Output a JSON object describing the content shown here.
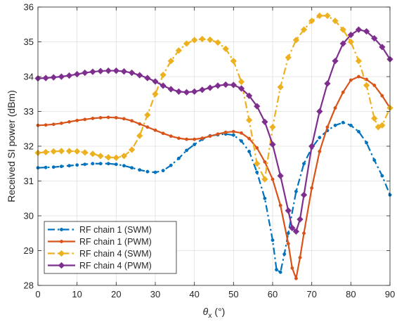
{
  "chart_data": {
    "type": "line",
    "xlabel_symbol": "θ",
    "xlabel_subscript": "x",
    "xlabel_unit": " (°)",
    "ylabel": "Received SI power (dBm)",
    "xlim": [
      0,
      90
    ],
    "ylim": [
      28,
      36
    ],
    "xticks": [
      0,
      10,
      20,
      30,
      40,
      50,
      60,
      70,
      80,
      90
    ],
    "yticks": [
      28,
      29,
      30,
      31,
      32,
      33,
      34,
      35,
      36
    ],
    "grid": true,
    "legend_position": "bottom-left",
    "series": [
      {
        "name": "RF chain 1 (SWM)",
        "color": "#0072BD",
        "line_style": "dashdot",
        "marker": "dot",
        "x": [
          0,
          2,
          4,
          6,
          8,
          10,
          12,
          14,
          16,
          18,
          20,
          22,
          24,
          26,
          28,
          30,
          32,
          34,
          36,
          38,
          40,
          42,
          44,
          46,
          48,
          50,
          52,
          54,
          56,
          58,
          60,
          61,
          62,
          63,
          64,
          66,
          68,
          70,
          72,
          74,
          76,
          78,
          80,
          82,
          84,
          86,
          88,
          90
        ],
        "y": [
          31.38,
          31.39,
          31.4,
          31.42,
          31.44,
          31.46,
          31.48,
          31.5,
          31.5,
          31.5,
          31.48,
          31.44,
          31.38,
          31.32,
          31.27,
          31.25,
          31.3,
          31.45,
          31.65,
          31.88,
          32.05,
          32.2,
          32.3,
          32.33,
          32.35,
          32.32,
          32.15,
          31.85,
          31.25,
          30.5,
          29.3,
          28.45,
          28.38,
          28.9,
          29.5,
          30.7,
          31.5,
          31.95,
          32.25,
          32.45,
          32.6,
          32.68,
          32.6,
          32.42,
          32.1,
          31.6,
          31.15,
          30.6
        ]
      },
      {
        "name": "RF chain 1 (PWM)",
        "color": "#D95319",
        "line_style": "solid",
        "marker": "dot",
        "x": [
          0,
          2,
          4,
          6,
          8,
          10,
          12,
          14,
          16,
          18,
          20,
          22,
          24,
          26,
          28,
          30,
          32,
          34,
          36,
          38,
          40,
          42,
          44,
          46,
          48,
          50,
          52,
          54,
          56,
          58,
          60,
          62,
          64,
          65,
          66,
          67,
          68,
          70,
          72,
          74,
          76,
          78,
          80,
          82,
          84,
          86,
          88,
          90
        ],
        "y": [
          32.6,
          32.61,
          32.63,
          32.66,
          32.7,
          32.74,
          32.77,
          32.8,
          32.82,
          32.83,
          32.82,
          32.79,
          32.73,
          32.64,
          32.55,
          32.46,
          32.37,
          32.29,
          32.23,
          32.2,
          32.2,
          32.23,
          32.29,
          32.35,
          32.4,
          32.42,
          32.38,
          32.22,
          31.95,
          31.55,
          31.05,
          30.3,
          29.2,
          28.5,
          28.2,
          28.8,
          29.5,
          30.8,
          31.85,
          32.55,
          33.1,
          33.55,
          33.9,
          34.0,
          33.92,
          33.75,
          33.45,
          33.1
        ]
      },
      {
        "name": "RF chain 4 (SWM)",
        "color": "#EDB120",
        "line_style": "dashdot",
        "marker": "diamond",
        "x": [
          0,
          2,
          4,
          6,
          8,
          10,
          12,
          14,
          16,
          18,
          20,
          22,
          24,
          26,
          28,
          30,
          32,
          34,
          36,
          38,
          40,
          42,
          44,
          46,
          48,
          50,
          52,
          54,
          56,
          58,
          60,
          62,
          64,
          66,
          68,
          70,
          72,
          74,
          76,
          78,
          80,
          82,
          84,
          86,
          87,
          88,
          90
        ],
        "y": [
          31.81,
          31.83,
          31.85,
          31.86,
          31.86,
          31.85,
          31.82,
          31.78,
          31.72,
          31.68,
          31.67,
          31.72,
          31.9,
          32.3,
          32.9,
          33.5,
          34.05,
          34.45,
          34.75,
          34.95,
          35.05,
          35.08,
          35.06,
          34.98,
          34.8,
          34.45,
          33.85,
          32.75,
          31.5,
          31.05,
          32.55,
          33.7,
          34.55,
          35.05,
          35.35,
          35.6,
          35.75,
          35.75,
          35.6,
          35.35,
          35.0,
          34.45,
          33.75,
          32.8,
          32.55,
          32.6,
          33.1
        ]
      },
      {
        "name": "RF chain 4 (PWM)",
        "color": "#7E2F8E",
        "line_style": "solid",
        "marker": "diamond",
        "x": [
          0,
          2,
          4,
          6,
          8,
          10,
          12,
          14,
          16,
          18,
          20,
          22,
          24,
          26,
          28,
          30,
          32,
          34,
          36,
          38,
          40,
          42,
          44,
          46,
          48,
          50,
          52,
          54,
          56,
          58,
          60,
          62,
          64,
          65,
          66,
          67,
          68,
          70,
          72,
          74,
          76,
          78,
          80,
          82,
          84,
          86,
          88,
          90
        ],
        "y": [
          33.95,
          33.96,
          33.98,
          34.0,
          34.03,
          34.07,
          34.11,
          34.14,
          34.16,
          34.17,
          34.17,
          34.15,
          34.11,
          34.04,
          33.96,
          33.86,
          33.74,
          33.64,
          33.57,
          33.55,
          33.57,
          33.62,
          33.68,
          33.74,
          33.77,
          33.76,
          33.66,
          33.45,
          33.15,
          32.7,
          32.05,
          31.15,
          30.15,
          29.65,
          29.55,
          29.9,
          30.6,
          32.0,
          33.0,
          33.8,
          34.45,
          34.95,
          35.2,
          35.35,
          35.3,
          35.1,
          34.85,
          34.5
        ]
      }
    ]
  }
}
